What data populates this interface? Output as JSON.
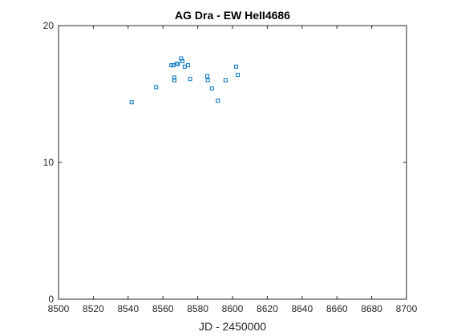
{
  "chart_data": {
    "type": "scatter",
    "title": "AG Dra - EW HeII4686",
    "xlabel": "JD - 2450000",
    "ylabel": "",
    "xlim": [
      8500,
      8700
    ],
    "ylim": [
      0,
      20
    ],
    "xticks": [
      8500,
      8520,
      8540,
      8560,
      8580,
      8600,
      8620,
      8640,
      8660,
      8680,
      8700
    ],
    "yticks": [
      0,
      10,
      20
    ],
    "grid": false,
    "marker": "square",
    "marker_color": "#0072bd",
    "series": [
      {
        "points": [
          [
            8542.0,
            14.4
          ],
          [
            8556.1,
            15.5
          ],
          [
            8564.9,
            17.1
          ],
          [
            8566.0,
            17.1
          ],
          [
            8566.5,
            16.2
          ],
          [
            8566.6,
            16.0
          ],
          [
            8567.9,
            17.2
          ],
          [
            8568.5,
            17.2
          ],
          [
            8570.5,
            17.6
          ],
          [
            8571.2,
            17.4
          ],
          [
            8572.5,
            17.0
          ],
          [
            8574.4,
            17.1
          ],
          [
            8575.6,
            16.1
          ],
          [
            8585.5,
            16.3
          ],
          [
            8585.8,
            16.0
          ],
          [
            8588.2,
            15.4
          ],
          [
            8591.6,
            14.5
          ],
          [
            8596.0,
            16.0
          ],
          [
            8602.1,
            17.0
          ],
          [
            8603.0,
            16.4
          ]
        ]
      }
    ]
  }
}
